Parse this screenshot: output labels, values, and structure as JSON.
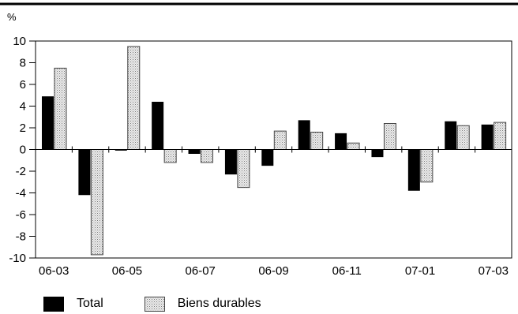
{
  "chart_data": {
    "type": "bar",
    "unit_label": "%",
    "x": [
      "06-03",
      "06-04",
      "06-05",
      "06-06",
      "06-07",
      "06-08",
      "06-09",
      "06-10",
      "06-11",
      "06-12",
      "07-01",
      "07-02",
      "07-03"
    ],
    "x_tick_labels": [
      "06-03",
      "06-05",
      "06-07",
      "06-09",
      "06-11",
      "07-01",
      "07-03"
    ],
    "y_ticks": [
      10,
      8,
      6,
      4,
      2,
      0,
      -2,
      -4,
      -6,
      -8,
      -10
    ],
    "ylim": [
      -10,
      10
    ],
    "series": [
      {
        "name": "Total",
        "values": [
          4.9,
          -4.2,
          -0.1,
          4.4,
          -0.4,
          -2.3,
          -1.5,
          2.7,
          1.5,
          -0.7,
          -3.8,
          2.6,
          2.3
        ],
        "color": "#000000"
      },
      {
        "name": "Biens durables",
        "values": [
          7.5,
          -9.7,
          9.5,
          -1.2,
          -1.2,
          -3.5,
          1.7,
          1.6,
          0.6,
          2.4,
          -3.0,
          2.2,
          2.5
        ],
        "color": "#d8d8d8",
        "pattern": "dotted"
      }
    ],
    "grid": false,
    "legend_position": "bottom-left"
  }
}
